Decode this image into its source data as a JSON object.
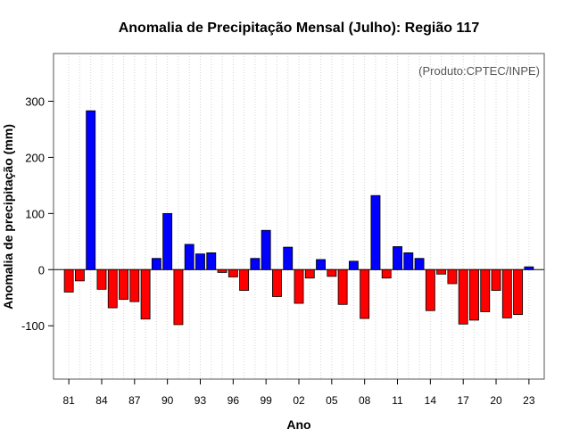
{
  "chart_data": {
    "type": "bar",
    "title": "Anomalia de Precipitação Mensal (Julho): Região 117",
    "xlabel": "Ano",
    "ylabel": "Anomalia de precipitação (mm)",
    "credit": "(Produto:CPTEC/INPE)",
    "ylim": [
      -195,
      385
    ],
    "yticks": [
      -100,
      0,
      100,
      200,
      300
    ],
    "ytick_labels": [
      "-100",
      "0",
      "100",
      "200",
      "300"
    ],
    "xtick_labels": [
      "81",
      "84",
      "87",
      "90",
      "93",
      "96",
      "99",
      "02",
      "05",
      "08",
      "11",
      "14",
      "17",
      "20",
      "23"
    ],
    "grid": true,
    "positive_color": "#0000ff",
    "negative_color": "#ff0000",
    "years": [
      1981,
      1982,
      1983,
      1984,
      1985,
      1986,
      1987,
      1988,
      1989,
      1990,
      1991,
      1992,
      1993,
      1994,
      1995,
      1996,
      1997,
      1998,
      1999,
      2000,
      2001,
      2002,
      2003,
      2004,
      2005,
      2006,
      2007,
      2008,
      2009,
      2010,
      2011,
      2012,
      2013,
      2014,
      2015,
      2016,
      2017,
      2018,
      2019,
      2020,
      2021,
      2022,
      2023
    ],
    "values": [
      -40,
      -20,
      283,
      -35,
      -68,
      -53,
      -57,
      -88,
      20,
      100,
      -98,
      45,
      28,
      30,
      -5,
      -13,
      -37,
      20,
      70,
      -48,
      40,
      -60,
      -15,
      18,
      -12,
      -62,
      15,
      -87,
      132,
      -15,
      41,
      30,
      20,
      -73,
      -8,
      -25,
      -97,
      -90,
      -75,
      -37,
      -86,
      -80,
      5
    ]
  }
}
